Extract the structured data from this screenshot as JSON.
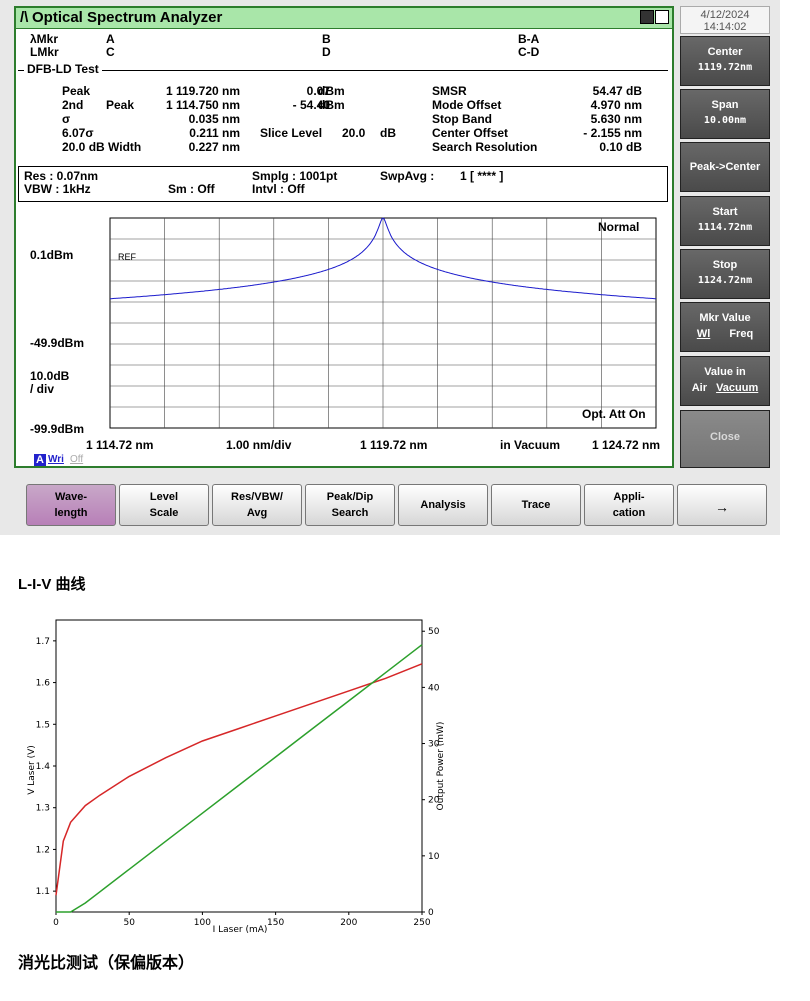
{
  "window": {
    "title": "Optical Spectrum Analyzer",
    "logo": "/\\"
  },
  "datetime": {
    "date": "4/12/2024",
    "time": "14:14:02"
  },
  "markers": {
    "lambda_label": "λMkr",
    "l_label": "LMkr",
    "a": "A",
    "b": "B",
    "c": "C",
    "d": "D",
    "ba": "B-A",
    "cd": "C-D"
  },
  "dfb": {
    "section": "DFB-LD Test",
    "peak_label": "Peak",
    "peak_nm": "1 119.720 nm",
    "peak_dbm": "0.07",
    "peak_unit": "dBm",
    "second_label": "2nd",
    "second_peak": "Peak",
    "second_nm": "1 114.750 nm",
    "second_dbm": "- 54.40",
    "second_unit": "dBm",
    "sigma_label": "σ",
    "sigma_val": "0.035 nm",
    "sigma6_label": "6.07σ",
    "sigma6_val": "0.211 nm",
    "width_label": "20.0  dB Width",
    "width_val": "0.227 nm",
    "slice_label": "Slice Level",
    "slice_val": "20.0",
    "slice_unit": "dB",
    "smsr_label": "SMSR",
    "smsr_val": "54.47 dB",
    "mode_label": "Mode Offset",
    "mode_val": "4.970 nm",
    "stop_label": "Stop Band",
    "stop_val": "5.630 nm",
    "center_label": "Center Offset",
    "center_val": "- 2.155 nm",
    "search_label": "Search Resolution",
    "search_val": "0.10  dB"
  },
  "settings": {
    "res": "Res :  0.07nm",
    "vbw": "VBW :   1kHz",
    "sm": "Sm :   Off",
    "smplg": "Smplg :   1001pt",
    "intvl": "Intvl :   Off",
    "swpavg": "SwpAvg :",
    "swpavg_val": "1  [    ****  ]"
  },
  "chart": {
    "mode": "Normal",
    "ref_tag": "REF",
    "y_top": "0.1dBm",
    "y_mid": "-49.9dBm",
    "y_bottom": "-99.9dBm",
    "scale": "10.0dB",
    "scale_unit": "/ div",
    "x_start": "1 114.72 nm",
    "x_div": "1.00 nm/div",
    "x_center": "1 119.72 nm",
    "x_medium": "in Vacuum",
    "x_stop": "1 124.72 nm",
    "att": "Opt. Att On",
    "trace_a": "A",
    "trace_wri": "Wri",
    "trace_off": "Off",
    "trace_color": "#1a1acc"
  },
  "softkeys": [
    {
      "line1": "Center",
      "line2": "1119.72nm"
    },
    {
      "line1": "Span",
      "line2": "10.00nm"
    },
    {
      "line1": "Peak->Center",
      "line2": ""
    },
    {
      "line1": "Start",
      "line2": "1114.72nm"
    },
    {
      "line1": "Stop",
      "line2": "1124.72nm"
    },
    {
      "line1": "Mkr Value",
      "line2a": "Wl",
      "line2b": "Freq"
    },
    {
      "line1": "Value in",
      "line2a": "Air",
      "line2b": "Vacuum"
    },
    {
      "line1": "Close",
      "line2": ""
    }
  ],
  "bottom_buttons": [
    {
      "line1": "Wave-",
      "line2": "length"
    },
    {
      "line1": "Level",
      "line2": "Scale"
    },
    {
      "line1": "Res/VBW/",
      "line2": "Avg"
    },
    {
      "line1": "Peak/Dip",
      "line2": "Search"
    },
    {
      "line1": "Analysis",
      "line2": ""
    },
    {
      "line1": "Trace",
      "line2": ""
    },
    {
      "line1": "Appli-",
      "line2": "cation"
    },
    {
      "line1": "→",
      "line2": ""
    }
  ],
  "headings": {
    "liv": "L-I-V 曲线",
    "extinction": "消光比测试（保偏版本）"
  },
  "liv_chart": {
    "xlabel": "I Laser (mA)",
    "ylabel_left": "V Laser (V)",
    "ylabel_right": "Output Power (mW)",
    "x_ticks": [
      "0",
      "50",
      "100",
      "150",
      "200",
      "250"
    ],
    "y_left_ticks": [
      "1.1",
      "1.2",
      "1.3",
      "1.4",
      "1.5",
      "1.6",
      "1.7"
    ],
    "y_right_ticks": [
      "0",
      "10",
      "20",
      "30",
      "40",
      "50"
    ],
    "voltage_color": "#d62728",
    "power_color": "#2ca02c"
  },
  "chart_data": {
    "type": "line",
    "x": [
      0,
      5,
      10,
      20,
      30,
      50,
      75,
      100,
      125,
      150,
      175,
      200,
      225,
      250
    ],
    "xlabel": "I Laser (mA)",
    "xlim": [
      0,
      250
    ],
    "series": [
      {
        "axis": "left",
        "ylabel": "V Laser (V)",
        "ylim": [
          1.05,
          1.75
        ],
        "values": [
          1.09,
          1.22,
          1.265,
          1.305,
          1.33,
          1.375,
          1.42,
          1.46,
          1.49,
          1.52,
          1.55,
          1.58,
          1.61,
          1.645
        ]
      },
      {
        "axis": "right",
        "ylabel": "Output Power (mW)",
        "ylim": [
          0,
          52
        ],
        "values": [
          0,
          0,
          0,
          1.6,
          3.6,
          7.6,
          12.6,
          17.6,
          22.6,
          27.6,
          32.6,
          37.6,
          42.6,
          47.6
        ]
      }
    ]
  }
}
